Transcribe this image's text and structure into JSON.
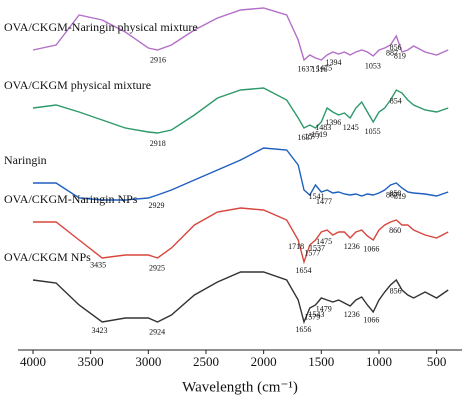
{
  "chart_data": {
    "type": "line",
    "x_label": "Wavelength (cm⁻¹)",
    "xlim": [
      4130,
      280
    ],
    "xticks": [
      4000,
      3500,
      3000,
      2500,
      2000,
      1500,
      1000,
      500
    ],
    "ylim": [
      0,
      350
    ],
    "x": [
      4000,
      3800,
      3600,
      3400,
      3200,
      3000,
      2920,
      2800,
      2600,
      2400,
      2200,
      2000,
      1800,
      1700,
      1650,
      1600,
      1550,
      1500,
      1450,
      1400,
      1350,
      1300,
      1250,
      1200,
      1150,
      1100,
      1050,
      1000,
      950,
      900,
      850,
      800,
      750,
      700,
      600,
      500,
      400
    ],
    "series": [
      {
        "name": "OVA/CKGM-Naringin physical mixture",
        "color": "#b36fc8",
        "values": [
          300,
          305,
          335,
          330,
          318,
          302,
          300,
          305,
          320,
          332,
          340,
          342,
          335,
          310,
          290,
          295,
          292,
          290,
          295,
          298,
          296,
          298,
          295,
          298,
          300,
          298,
          294,
          300,
          302,
          305,
          314,
          298,
          300,
          304,
          298,
          295,
          300
        ],
        "peaks": [
          2916,
          1637,
          1516,
          1475,
          1394,
          1053,
          887,
          856,
          819
        ]
      },
      {
        "name": "OVA/CKGM physical mixture",
        "color": "#2e9a6a",
        "values": [
          242,
          245,
          238,
          230,
          222,
          218,
          217,
          220,
          235,
          252,
          260,
          262,
          250,
          232,
          222,
          225,
          222,
          228,
          242,
          238,
          235,
          237,
          232,
          242,
          248,
          238,
          228,
          238,
          242,
          250,
          260,
          257,
          250,
          245,
          240,
          238,
          242
        ],
        "peaks": [
          2918,
          1637,
          1577,
          1519,
          1483,
          1396,
          1245,
          1055,
          854
        ]
      },
      {
        "name": "Naringin",
        "color": "#1f5fbf",
        "values": [
          167,
          167,
          152,
          150,
          150,
          152,
          155,
          160,
          170,
          180,
          190,
          202,
          200,
          185,
          160,
          155,
          165,
          158,
          160,
          157,
          158,
          156,
          155,
          156,
          154,
          156,
          155,
          157,
          160,
          165,
          167,
          162,
          158,
          157,
          156,
          154,
          158
        ],
        "peaks": [
          2929,
          1541,
          1477,
          887,
          858,
          819
        ]
      },
      {
        "name": "OVA/CKGM-Naringin NPs",
        "color": "#d9453d",
        "values": [
          128,
          128,
          110,
          92,
          95,
          95,
          92,
          102,
          125,
          138,
          142,
          140,
          130,
          110,
          88,
          105,
          110,
          118,
          120,
          115,
          118,
          118,
          112,
          118,
          120,
          114,
          110,
          120,
          125,
          128,
          130,
          125,
          125,
          120,
          115,
          112,
          118
        ],
        "peaks": [
          3435,
          2925,
          1718,
          1654,
          1577,
          1537,
          1475,
          1236,
          1066,
          860
        ]
      },
      {
        "name": "OVA/CKGM NPs",
        "color": "#333333",
        "values": [
          70,
          67,
          45,
          28,
          32,
          32,
          28,
          35,
          55,
          68,
          78,
          78,
          70,
          50,
          28,
          42,
          45,
          52,
          50,
          48,
          50,
          47,
          44,
          50,
          53,
          45,
          38,
          50,
          58,
          65,
          70,
          60,
          55,
          52,
          58,
          52,
          60
        ],
        "peaks": [
          3423,
          2924,
          1656,
          1579,
          1543,
          1479,
          1236,
          1066,
          856
        ]
      }
    ]
  }
}
